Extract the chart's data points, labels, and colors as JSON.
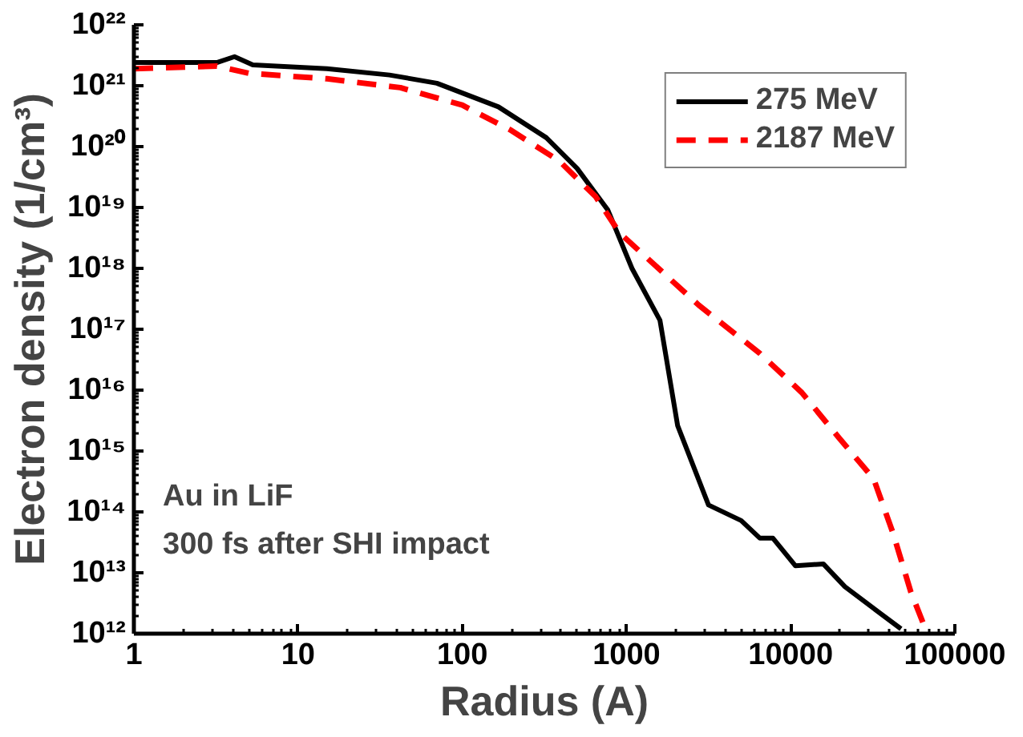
{
  "chart_data": {
    "type": "line",
    "xlabel": "Radius (A)",
    "ylabel": "Electron density (1/cm³)",
    "log": "xy",
    "xlim": [
      1,
      100000
    ],
    "ylim": [
      1000000000000.0,
      1e+22
    ],
    "xticks": [
      1,
      10,
      100,
      1000,
      10000,
      100000
    ],
    "yticks": [
      {
        "value": 1000000000000.0,
        "label": "10¹²"
      },
      {
        "value": 10000000000000.0,
        "label": "10¹³"
      },
      {
        "value": 100000000000000.0,
        "label": "10¹⁴"
      },
      {
        "value": 1000000000000000.0,
        "label": "10¹⁵"
      },
      {
        "value": 1e+16,
        "label": "10¹⁶"
      },
      {
        "value": 1e+17,
        "label": "10¹⁷"
      },
      {
        "value": 1e+18,
        "label": "10¹⁸"
      },
      {
        "value": 1e+19,
        "label": "10¹⁹"
      },
      {
        "value": 1e+20,
        "label": "10²⁰"
      },
      {
        "value": 1e+21,
        "label": "10²¹"
      },
      {
        "value": 1e+22,
        "label": "10²²"
      }
    ],
    "grid": false,
    "legend": "top right",
    "marker": "none",
    "annotations": [
      "Au in LiF",
      "300 fs after SHI impact"
    ],
    "series": [
      {
        "name": "275 MeV",
        "color": "#000000",
        "line_style": "solid",
        "x": [
          1,
          2,
          3.2,
          4.1,
          5.3,
          15,
          36,
          70,
          166,
          325,
          500,
          770,
          1080,
          1600,
          2050,
          3160,
          5000,
          6500,
          7800,
          10700,
          15800,
          21400,
          32000,
          47000
        ],
        "values": [
          2.4e+21,
          2.4e+21,
          2.4e+21,
          3e+21,
          2.2e+21,
          1.9e+21,
          1.5e+21,
          1.1e+21,
          4.5e+20,
          1.4e+20,
          4.4e+19,
          9.1e+18,
          1e+18,
          1.4e+17,
          2600000000000000.0,
          130000000000000.0,
          72000000000000.0,
          37000000000000.0,
          37000000000000.0,
          13000000000000.0,
          14000000000000.0,
          5900000000000.0,
          2600000000000.0,
          1200000000000.0
        ]
      },
      {
        "name": "2187 MeV",
        "color": "#ff0000",
        "line_style": "dashed",
        "x": [
          1,
          3.2,
          5,
          15,
          42,
          100,
          195,
          390,
          650,
          910,
          1820,
          2750,
          6500,
          11700,
          19500,
          32000,
          42000,
          54000,
          68000
        ],
        "values": [
          1.9e+21,
          2.1e+21,
          1.6e+21,
          1.3e+21,
          9.3e+20,
          4.8e+20,
          1.9e+20,
          5.8e+19,
          1.5e+19,
          3.8e+18,
          6.9e+17,
          2.5e+17,
          4e+16,
          9100000000000000.0,
          1700000000000000.0,
          350000000000000.0,
          45000000000000.0,
          4800000000000.0,
          1000000000000.0
        ]
      }
    ]
  }
}
